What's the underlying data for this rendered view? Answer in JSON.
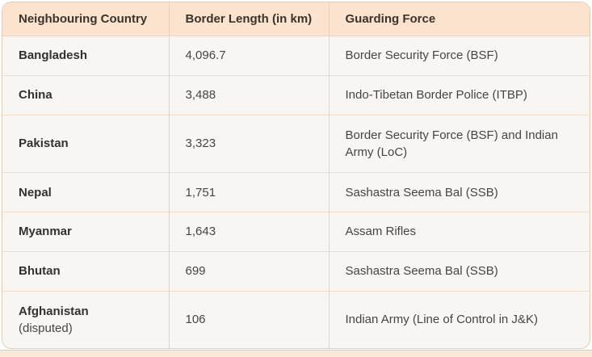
{
  "colors": {
    "header_bg": "#fbe3ce",
    "header_text": "#3a332c",
    "body_bg": "#f8f6f3",
    "body_text": "#474441",
    "country_text": "#33312e",
    "column_divider": "#e7d2bf",
    "row_divider": "#efdecd",
    "outer_border": "#e2cdbc",
    "page_bg": "#fdfdfd",
    "bottom_strip_bg": "#fae8d8"
  },
  "table": {
    "columns": [
      "Neighbouring Country",
      "Border Length (in km)",
      "Guarding Force"
    ],
    "rows": [
      {
        "country": "Bangladesh",
        "country_note": "",
        "border_length_km": "4,096.7",
        "guarding_force": "Border Security Force (BSF)"
      },
      {
        "country": "China",
        "country_note": "",
        "border_length_km": "3,488",
        "guarding_force": "Indo-Tibetan Border Police (ITBP)"
      },
      {
        "country": "Pakistan",
        "country_note": "",
        "border_length_km": "3,323",
        "guarding_force": "Border Security Force (BSF) and Indian Army (LoC)"
      },
      {
        "country": "Nepal",
        "country_note": "",
        "border_length_km": "1,751",
        "guarding_force": "Sashastra Seema Bal (SSB)"
      },
      {
        "country": "Myanmar",
        "country_note": "",
        "border_length_km": "1,643",
        "guarding_force": "Assam Rifles"
      },
      {
        "country": "Bhutan",
        "country_note": "",
        "border_length_km": "699",
        "guarding_force": "Sashastra Seema Bal (SSB)"
      },
      {
        "country": "Afghanistan",
        "country_note": "(disputed)",
        "border_length_km": "106",
        "guarding_force": "Indian Army (Line of Control in J&K)"
      }
    ]
  }
}
